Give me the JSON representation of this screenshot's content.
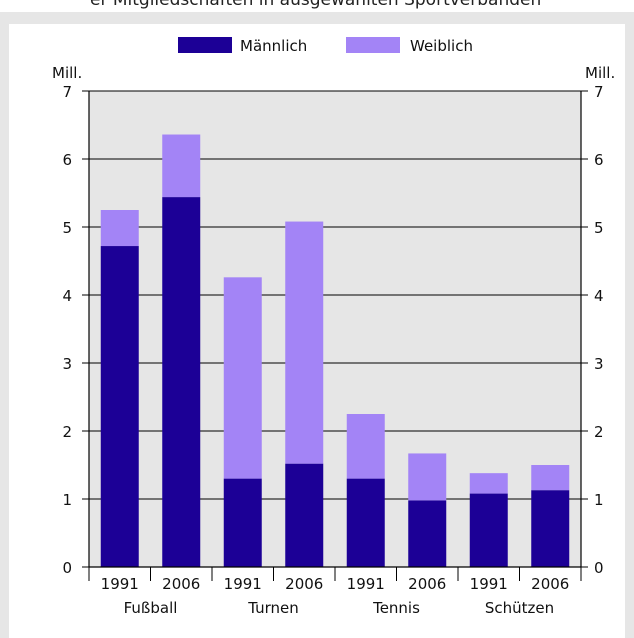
{
  "header_fragment": "er Mitgliedschaften in ausgewählten Sportverbänden",
  "chart_data": {
    "type": "bar",
    "stacked": true,
    "y_unit_left": "Mill.",
    "y_unit_right": "Mill.",
    "ylim": [
      0,
      7
    ],
    "yticks": [
      0,
      1,
      2,
      3,
      4,
      5,
      6,
      7
    ],
    "x_years": [
      "1991",
      "2006",
      "1991",
      "2006",
      "1991",
      "2006",
      "1991",
      "2006"
    ],
    "groups": [
      "Fußball",
      "Turnen",
      "Tennis",
      "Schützen"
    ],
    "series": [
      {
        "name": "Männlich",
        "color": "#1c0096",
        "values": [
          4.72,
          5.44,
          1.3,
          1.52,
          1.3,
          0.98,
          1.08,
          1.13
        ]
      },
      {
        "name": "Weiblich",
        "color": "#a384f6",
        "values": [
          0.53,
          0.92,
          2.96,
          3.56,
          0.95,
          0.69,
          0.3,
          0.37
        ]
      }
    ],
    "grid": true,
    "legend_position": "top",
    "plot_background": "#e6e6e6"
  }
}
